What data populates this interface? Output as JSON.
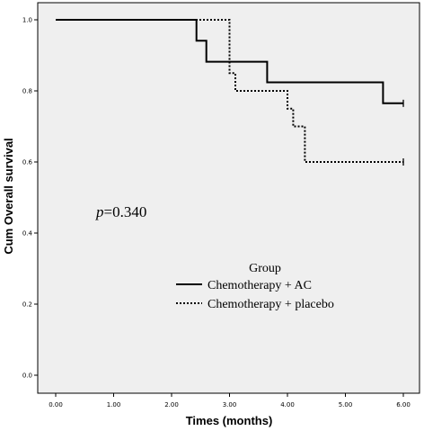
{
  "chart_data": {
    "type": "line",
    "step": true,
    "xlabel": "Times (months)",
    "ylabel": "Cum Overall survival",
    "xlim": [
      0,
      6
    ],
    "ylim": [
      0,
      1
    ],
    "x_ticks": [
      "0.00",
      "1.00",
      "2.00",
      "3.00",
      "4.00",
      "5.00",
      "6.00"
    ],
    "y_ticks": [
      "0.0",
      "0.2",
      "0.4",
      "0.6",
      "0.8",
      "1.0"
    ],
    "grid": false,
    "plot_background": "#efefef",
    "annotation": {
      "italic": "p",
      "rest": "=0.340"
    },
    "legend": {
      "title": "Group",
      "placement": "center-right"
    },
    "series": [
      {
        "name": "Chemotherapy + AC",
        "style": "solid",
        "color": "#000000",
        "points": [
          [
            0,
            1.0
          ],
          [
            2.43,
            1.0
          ],
          [
            2.43,
            0.941
          ],
          [
            2.6,
            0.941
          ],
          [
            2.6,
            0.882
          ],
          [
            3.65,
            0.882
          ],
          [
            3.65,
            0.824
          ],
          [
            5.65,
            0.824
          ],
          [
            5.65,
            0.765
          ],
          [
            6.0,
            0.765
          ]
        ],
        "censored": [
          [
            6.0,
            0.765
          ]
        ]
      },
      {
        "name": "Chemotherapy + placebo",
        "style": "dotted",
        "color": "#000000",
        "points": [
          [
            0,
            1.0
          ],
          [
            3.0,
            1.0
          ],
          [
            3.0,
            0.85
          ],
          [
            3.1,
            0.85
          ],
          [
            3.1,
            0.8
          ],
          [
            4.0,
            0.8
          ],
          [
            4.0,
            0.75
          ],
          [
            4.1,
            0.75
          ],
          [
            4.1,
            0.7
          ],
          [
            4.3,
            0.7
          ],
          [
            4.3,
            0.6
          ],
          [
            6.0,
            0.6
          ]
        ],
        "censored": [
          [
            6.0,
            0.6
          ]
        ]
      }
    ]
  }
}
